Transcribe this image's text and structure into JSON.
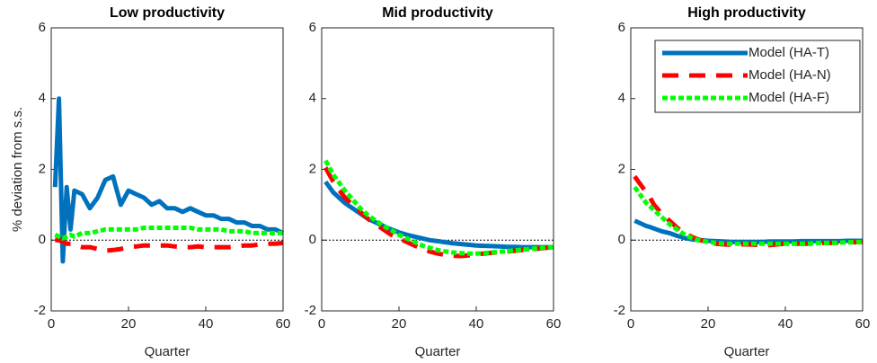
{
  "chart_data": [
    {
      "type": "line",
      "title": "Low productivity",
      "xlabel": "Quarter",
      "ylabel": "% deviation from s.s.",
      "x": [
        1,
        2,
        3,
        4,
        5,
        6,
        8,
        10,
        12,
        14,
        16,
        18,
        20,
        22,
        24,
        26,
        28,
        30,
        32,
        34,
        36,
        38,
        40,
        42,
        44,
        46,
        48,
        50,
        52,
        54,
        56,
        58,
        60
      ],
      "series": [
        {
          "name": "Model (HA-T)",
          "color": "#0072bd",
          "line_style": "solid",
          "values": [
            1.5,
            4.0,
            -0.6,
            1.5,
            0.3,
            1.4,
            1.3,
            0.9,
            1.2,
            1.7,
            1.8,
            1.0,
            1.4,
            1.3,
            1.2,
            1.0,
            1.1,
            0.9,
            0.9,
            0.8,
            0.9,
            0.8,
            0.7,
            0.7,
            0.6,
            0.6,
            0.5,
            0.5,
            0.4,
            0.4,
            0.3,
            0.3,
            0.2
          ]
        },
        {
          "name": "Model (HA-N)",
          "color": "#ff0000",
          "line_style": "dashed",
          "values": [
            0,
            0,
            -0.05,
            -0.1,
            -0.1,
            -0.15,
            -0.2,
            -0.2,
            -0.25,
            -0.3,
            -0.28,
            -0.25,
            -0.2,
            -0.18,
            -0.15,
            -0.15,
            -0.15,
            -0.15,
            -0.18,
            -0.2,
            -0.2,
            -0.18,
            -0.2,
            -0.2,
            -0.2,
            -0.2,
            -0.18,
            -0.15,
            -0.15,
            -0.12,
            -0.1,
            -0.1,
            -0.08
          ]
        },
        {
          "name": "Model (HA-F)",
          "color": "#00ff00",
          "line_style": "dotted",
          "values": [
            0.15,
            0.1,
            0.05,
            0.1,
            0.15,
            0.1,
            0.2,
            0.2,
            0.25,
            0.3,
            0.3,
            0.3,
            0.3,
            0.3,
            0.35,
            0.35,
            0.35,
            0.35,
            0.35,
            0.35,
            0.35,
            0.3,
            0.3,
            0.3,
            0.3,
            0.25,
            0.25,
            0.25,
            0.2,
            0.2,
            0.2,
            0.2,
            0.2
          ]
        }
      ],
      "hline": 0,
      "xlim": [
        0,
        60
      ],
      "ylim": [
        -2,
        6
      ],
      "xticks": [
        0,
        20,
        40,
        60
      ],
      "yticks": [
        -2,
        0,
        2,
        4,
        6
      ]
    },
    {
      "type": "line",
      "title": "Mid productivity",
      "xlabel": "Quarter",
      "x": [
        1,
        2,
        3,
        4,
        5,
        6,
        8,
        10,
        12,
        14,
        16,
        18,
        20,
        22,
        24,
        26,
        28,
        30,
        32,
        34,
        36,
        38,
        40,
        42,
        44,
        46,
        48,
        50,
        52,
        54,
        56,
        58,
        60
      ],
      "series": [
        {
          "name": "Model (HA-T)",
          "color": "#0072bd",
          "line_style": "solid",
          "values": [
            1.65,
            1.5,
            1.35,
            1.25,
            1.15,
            1.05,
            0.9,
            0.75,
            0.6,
            0.5,
            0.4,
            0.3,
            0.22,
            0.15,
            0.1,
            0.05,
            0.0,
            -0.03,
            -0.06,
            -0.09,
            -0.11,
            -0.13,
            -0.15,
            -0.16,
            -0.17,
            -0.18,
            -0.19,
            -0.19,
            -0.2,
            -0.2,
            -0.2,
            -0.2,
            -0.2
          ]
        },
        {
          "name": "Model (HA-N)",
          "color": "#ff0000",
          "line_style": "dashed",
          "values": [
            2.05,
            1.85,
            1.65,
            1.5,
            1.35,
            1.2,
            1.0,
            0.8,
            0.6,
            0.45,
            0.3,
            0.15,
            0.05,
            -0.05,
            -0.15,
            -0.25,
            -0.32,
            -0.38,
            -0.42,
            -0.44,
            -0.45,
            -0.43,
            -0.4,
            -0.38,
            -0.36,
            -0.34,
            -0.32,
            -0.3,
            -0.28,
            -0.26,
            -0.24,
            -0.22,
            -0.2
          ]
        },
        {
          "name": "Model (HA-F)",
          "color": "#00ff00",
          "line_style": "dotted",
          "values": [
            2.25,
            2.05,
            1.85,
            1.7,
            1.55,
            1.4,
            1.15,
            0.9,
            0.7,
            0.55,
            0.4,
            0.28,
            0.15,
            0.05,
            -0.05,
            -0.15,
            -0.22,
            -0.28,
            -0.32,
            -0.35,
            -0.37,
            -0.38,
            -0.38,
            -0.37,
            -0.35,
            -0.33,
            -0.31,
            -0.29,
            -0.27,
            -0.25,
            -0.23,
            -0.21,
            -0.2
          ]
        }
      ],
      "hline": 0,
      "xlim": [
        0,
        60
      ],
      "ylim": [
        -2,
        6
      ],
      "xticks": [
        0,
        20,
        40,
        60
      ],
      "yticks": [
        -2,
        0,
        2,
        4,
        6
      ]
    },
    {
      "type": "line",
      "title": "High productivity",
      "xlabel": "Quarter",
      "legend": "northeast",
      "x": [
        1,
        2,
        3,
        4,
        5,
        6,
        8,
        10,
        12,
        14,
        16,
        18,
        20,
        22,
        24,
        26,
        28,
        30,
        32,
        34,
        36,
        38,
        40,
        42,
        44,
        46,
        48,
        50,
        52,
        54,
        56,
        58,
        60
      ],
      "series": [
        {
          "name": "Model (HA-T)",
          "color": "#0072bd",
          "line_style": "solid",
          "values": [
            0.55,
            0.5,
            0.45,
            0.4,
            0.37,
            0.33,
            0.25,
            0.2,
            0.12,
            0.06,
            0.02,
            0.0,
            -0.02,
            -0.03,
            -0.04,
            -0.05,
            -0.05,
            -0.05,
            -0.05,
            -0.05,
            -0.04,
            -0.04,
            -0.04,
            -0.04,
            -0.03,
            -0.03,
            -0.03,
            -0.03,
            -0.03,
            -0.03,
            -0.02,
            -0.02,
            -0.02
          ]
        },
        {
          "name": "Model (HA-N)",
          "color": "#ff0000",
          "line_style": "dashed",
          "values": [
            1.8,
            1.65,
            1.5,
            1.35,
            1.2,
            1.0,
            0.75,
            0.55,
            0.35,
            0.2,
            0.08,
            0.0,
            -0.05,
            -0.1,
            -0.12,
            -0.13,
            -0.12,
            -0.12,
            -0.13,
            -0.14,
            -0.14,
            -0.12,
            -0.1,
            -0.1,
            -0.1,
            -0.1,
            -0.1,
            -0.08,
            -0.08,
            -0.07,
            -0.06,
            -0.06,
            -0.05
          ]
        },
        {
          "name": "Model (HA-F)",
          "color": "#00ff00",
          "line_style": "dotted",
          "values": [
            1.5,
            1.35,
            1.2,
            1.05,
            0.95,
            0.85,
            0.65,
            0.45,
            0.3,
            0.15,
            0.05,
            -0.02,
            -0.05,
            -0.08,
            -0.1,
            -0.1,
            -0.1,
            -0.1,
            -0.1,
            -0.1,
            -0.1,
            -0.1,
            -0.1,
            -0.1,
            -0.1,
            -0.1,
            -0.08,
            -0.08,
            -0.08,
            -0.07,
            -0.06,
            -0.06,
            -0.05
          ]
        }
      ],
      "hline": 0,
      "xlim": [
        0,
        60
      ],
      "ylim": [
        -2,
        6
      ],
      "xticks": [
        0,
        20,
        40,
        60
      ],
      "yticks": [
        -2,
        0,
        2,
        4,
        6
      ]
    }
  ]
}
